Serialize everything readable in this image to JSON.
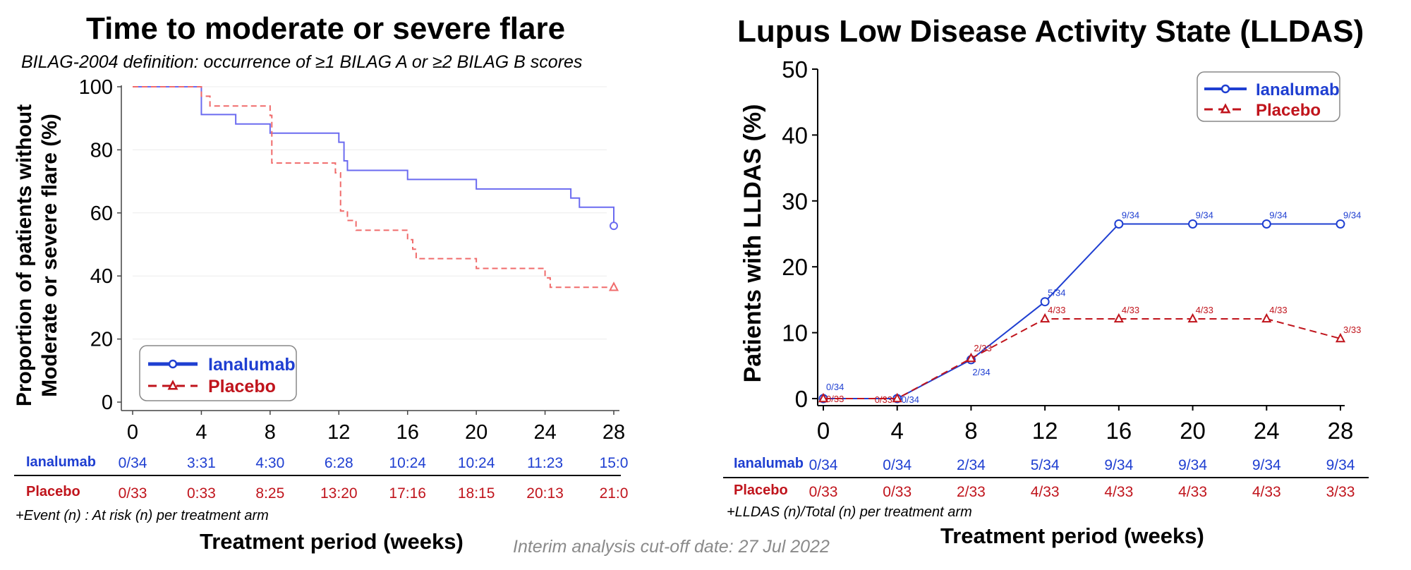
{
  "left": {
    "title": "Time to moderate or severe flare",
    "subtitle": "BILAG-2004 definition: occurrence of ≥1 BILAG A or ≥2 BILAG B scores",
    "footnote": "+Event (n) : At risk (n) per treatment arm",
    "xlabel": "Treatment period (weeks)",
    "risk_table": {
      "rows": [
        {
          "label": "Ianalumab",
          "values": [
            "0/34",
            "3:31",
            "4:30",
            "6:28",
            "10:24",
            "10:24",
            "11:23",
            "15:0"
          ]
        },
        {
          "label": "Placebo",
          "values": [
            "0/33",
            "0:33",
            "8:25",
            "13:20",
            "17:16",
            "18:15",
            "20:13",
            "21:0"
          ]
        }
      ]
    }
  },
  "right": {
    "title": "Lupus Low Disease Activity State (LLDAS)",
    "footnote": "+LLDAS (n)/Total (n) per treatment arm",
    "xlabel": "Treatment period (weeks)",
    "count_table": {
      "rows": [
        {
          "label": "Ianalumab",
          "values": [
            "0/34",
            "0/34",
            "2/34",
            "5/34",
            "9/34",
            "9/34",
            "9/34",
            "9/34"
          ]
        },
        {
          "label": "Placebo",
          "values": [
            "0/33",
            "0/33",
            "2/33",
            "4/33",
            "4/33",
            "4/33",
            "4/33",
            "3/33"
          ]
        }
      ]
    }
  },
  "cutoff_note": "Interim analysis cut-off date: 27 Jul 2022",
  "colors": {
    "ianalumab": "#1f3fd1",
    "placebo": "#c0141c",
    "km_blue": "#6b6bf0",
    "km_red": "#f06b6b"
  },
  "chart_data": [
    {
      "type": "line",
      "subtype": "kaplan-meier step",
      "title": "Time to moderate or severe flare",
      "xlabel": "",
      "ylabel": "Proportion of patients without Moderate or severe flare (%)",
      "xlim": [
        0,
        28
      ],
      "ylim": [
        0,
        100
      ],
      "xticks": [
        0,
        4,
        8,
        12,
        16,
        20,
        24,
        28
      ],
      "yticks": [
        0,
        20,
        40,
        60,
        80,
        100
      ],
      "grid": true,
      "legend_position": "bottom-left",
      "series": [
        {
          "name": "Ianalumab",
          "color": "#6b6bf0",
          "marker": "circle",
          "steps": [
            [
              0,
              100
            ],
            [
              4,
              91.2
            ],
            [
              6,
              88.2
            ],
            [
              8,
              85.3
            ],
            [
              12,
              82.4
            ],
            [
              12.3,
              76.5
            ],
            [
              12.5,
              73.5
            ],
            [
              16,
              70.6
            ],
            [
              20,
              67.6
            ],
            [
              25.5,
              64.7
            ],
            [
              26,
              61.8
            ],
            [
              28,
              55.9
            ]
          ],
          "end_marker": [
            28,
            55.9
          ]
        },
        {
          "name": "Placebo",
          "color": "#f06b6b",
          "marker": "triangle",
          "steps": [
            [
              0,
              100
            ],
            [
              4,
              97
            ],
            [
              4.5,
              93.9
            ],
            [
              8,
              90.9
            ],
            [
              8.1,
              75.8
            ],
            [
              11.8,
              72.7
            ],
            [
              12.1,
              60.6
            ],
            [
              12.5,
              57.6
            ],
            [
              13,
              54.5
            ],
            [
              16,
              51.5
            ],
            [
              16.3,
              48.5
            ],
            [
              16.5,
              45.5
            ],
            [
              20,
              42.4
            ],
            [
              24,
              39.4
            ],
            [
              24.3,
              36.4
            ],
            [
              28,
              36.4
            ]
          ],
          "end_marker": [
            28,
            36.4
          ]
        }
      ]
    },
    {
      "type": "line",
      "title": "Lupus Low Disease Activity State (LLDAS)",
      "xlabel": "",
      "ylabel": "Patients  with LLDAS (%)",
      "x": [
        0,
        4,
        8,
        12,
        16,
        20,
        24,
        28
      ],
      "xlim": [
        0,
        28
      ],
      "ylim": [
        0,
        50
      ],
      "xticks": [
        0,
        4,
        8,
        12,
        16,
        20,
        24,
        28
      ],
      "yticks": [
        0,
        10,
        20,
        30,
        40,
        50
      ],
      "grid": false,
      "legend_position": "top-right",
      "series": [
        {
          "name": "Ianalumab",
          "color": "#1f3fd1",
          "marker": "circle",
          "dash": "solid",
          "values": [
            0,
            0,
            5.9,
            14.7,
            26.5,
            26.5,
            26.5,
            26.5
          ],
          "labels": [
            "0/34",
            "0/34",
            "2/34",
            "5/34",
            "9/34",
            "9/34",
            "9/34",
            "9/34"
          ]
        },
        {
          "name": "Placebo",
          "color": "#c0141c",
          "marker": "triangle",
          "dash": "dashed",
          "values": [
            0,
            0,
            6.1,
            12.1,
            12.1,
            12.1,
            12.1,
            9.1
          ],
          "labels": [
            "0/33",
            "0/33",
            "2/33",
            "4/33",
            "4/33",
            "4/33",
            "4/33",
            "3/33"
          ]
        }
      ]
    }
  ]
}
